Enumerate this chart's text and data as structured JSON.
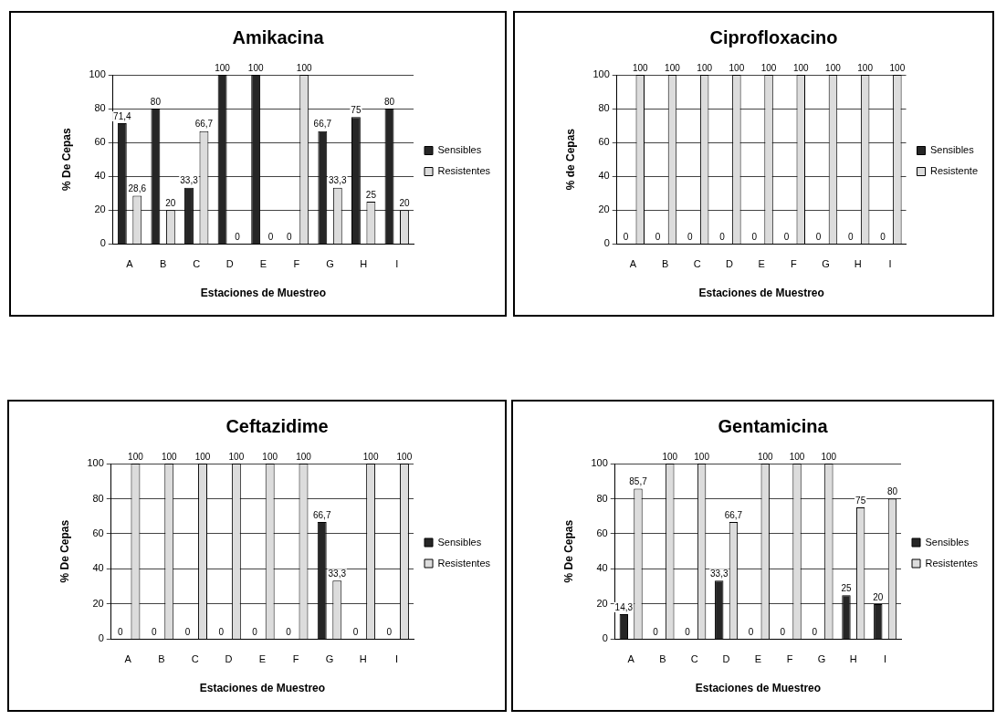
{
  "chart_data": [
    {
      "type": "bar",
      "title": "Amikacina",
      "xlabel": "Estaciones de Muestreo",
      "ylabel": "% De Cepas",
      "categories": [
        "A",
        "B",
        "C",
        "D",
        "E",
        "F",
        "G",
        "H",
        "I"
      ],
      "series": [
        {
          "name": "Sensibles",
          "color": "#262626",
          "values": [
            71.4,
            80,
            33.3,
            100,
            100,
            0,
            66.7,
            75,
            80
          ],
          "value_labels": [
            "71,4",
            "80",
            "33,3",
            "100",
            "100",
            "0",
            "66,7",
            "75",
            "80"
          ]
        },
        {
          "name": "Resistentes",
          "color": "#dcdcdc",
          "values": [
            28.6,
            20,
            66.7,
            0,
            0,
            100,
            33.3,
            25,
            20
          ],
          "value_labels": [
            "28,6",
            "20",
            "66,7",
            "0",
            "0",
            "100",
            "33,3",
            "25",
            "20"
          ]
        }
      ],
      "ylim": [
        0,
        100
      ],
      "yticks": [
        0,
        20,
        40,
        60,
        80,
        100
      ],
      "grid": "y",
      "legend": "right"
    },
    {
      "type": "bar",
      "title": "Ciprofloxacino",
      "xlabel": "Estaciones de Muestreo",
      "ylabel": "% de Cepas",
      "categories": [
        "A",
        "B",
        "C",
        "D",
        "E",
        "F",
        "G",
        "H",
        "I"
      ],
      "series": [
        {
          "name": "Sensibles",
          "color": "#262626",
          "values": [
            0,
            0,
            0,
            0,
            0,
            0,
            0,
            0,
            0
          ]
        },
        {
          "name": "Resistente",
          "color": "#dcdcdc",
          "values": [
            100,
            100,
            100,
            100,
            100,
            100,
            100,
            100,
            100
          ]
        }
      ],
      "data_labels": true,
      "ylim": [
        0,
        100
      ],
      "yticks": [
        0,
        20,
        40,
        60,
        80,
        100
      ],
      "grid": "y",
      "legend": "right"
    },
    {
      "type": "bar",
      "title": "Ceftazidime",
      "xlabel": "Estaciones de Muestreo",
      "ylabel": "% De Cepas",
      "categories": [
        "A",
        "B",
        "C",
        "D",
        "E",
        "F",
        "G",
        "H",
        "I"
      ],
      "series": [
        {
          "name": "Sensibles",
          "color": "#262626",
          "values": [
            0,
            0,
            0,
            0,
            0,
            0,
            66.7,
            0,
            0
          ],
          "value_labels": [
            "0",
            "0",
            "0",
            "0",
            "0",
            "0",
            "66,7",
            "0",
            "0"
          ]
        },
        {
          "name": "Resistentes",
          "color": "#dcdcdc",
          "values": [
            100,
            100,
            100,
            100,
            100,
            100,
            33.3,
            100,
            100
          ],
          "value_labels": [
            "100",
            "100",
            "100",
            "100",
            "100",
            "100",
            "33,3",
            "100",
            "100"
          ]
        }
      ],
      "ylim": [
        0,
        100
      ],
      "yticks": [
        0,
        20,
        40,
        60,
        80,
        100
      ],
      "grid": "y",
      "legend": "right"
    },
    {
      "type": "bar",
      "title": "Gentamicina",
      "xlabel": "Estaciones de Muestreo",
      "ylabel": "% De Cepas",
      "categories": [
        "A",
        "B",
        "C",
        "D",
        "E",
        "F",
        "G",
        "H",
        "I"
      ],
      "series": [
        {
          "name": "Sensibles",
          "color": "#262626",
          "values": [
            14.3,
            0,
            0,
            33.3,
            0,
            0,
            0,
            25,
            20
          ],
          "value_labels": [
            "14,3",
            "0",
            "0",
            "33,3",
            "0",
            "0",
            "0",
            "25",
            "20"
          ]
        },
        {
          "name": "Resistentes",
          "color": "#dcdcdc",
          "values": [
            85.7,
            100,
            100,
            66.7,
            100,
            100,
            100,
            75,
            80
          ],
          "value_labels": [
            "85,7",
            "100",
            "100",
            "66,7",
            "100",
            "100",
            "100",
            "75",
            "80"
          ]
        }
      ],
      "ylim": [
        0,
        100
      ],
      "yticks": [
        0,
        20,
        40,
        60,
        80,
        100
      ],
      "grid": "y",
      "legend": "right"
    }
  ]
}
